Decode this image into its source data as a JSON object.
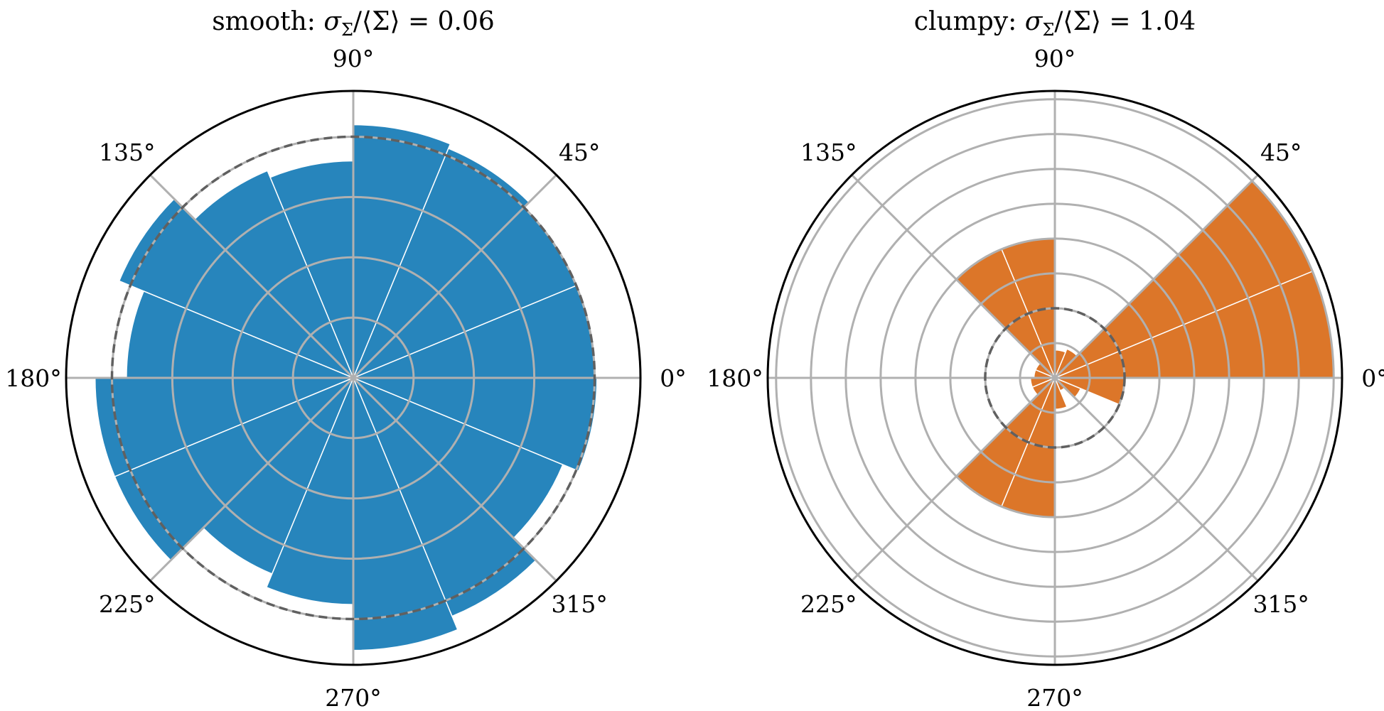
{
  "chart_data": [
    {
      "type": "polar-bar",
      "title": {
        "prefix": "smooth: ",
        "math": "σ",
        "subscript": "Σ",
        "rest": "/⟨Σ⟩ = 0.06"
      },
      "color": "#2785bc",
      "bar_edge_color": "#ffffff",
      "theta_tick_labels": [
        "0°",
        "45°",
        "90°",
        "135°",
        "180°",
        "225°",
        "270°",
        "315°"
      ],
      "theta_tick_degrees": [
        0,
        45,
        90,
        135,
        180,
        225,
        270,
        315
      ],
      "rmax": 1.19,
      "r_gridlines": [
        0.25,
        0.5,
        0.75,
        1.0
      ],
      "mean_radius": 1.0,
      "theta_starts_deg": [
        0,
        22.5,
        45,
        67.5,
        90,
        112.5,
        135,
        157.5,
        180,
        202.5,
        225,
        247.5,
        270,
        292.5,
        315,
        337.5
      ],
      "bar_width_deg": 22.5,
      "values": [
        1.0,
        1.0,
        1.03,
        1.05,
        0.9,
        0.93,
        1.05,
        0.94,
        1.07,
        1.07,
        0.88,
        0.94,
        1.13,
        1.07,
        0.94,
        1.01
      ]
    },
    {
      "type": "polar-bar",
      "title": {
        "prefix": "clumpy: ",
        "math": "σ",
        "subscript": "Σ",
        "rest": "/⟨Σ⟩ = 1.04"
      },
      "color": "#dc7629",
      "bar_edge_color": "#ffffff",
      "theta_tick_labels": [
        "0°",
        "45°",
        "90°",
        "135°",
        "180°",
        "225°",
        "270°",
        "315°"
      ],
      "theta_tick_degrees": [
        0,
        45,
        90,
        135,
        180,
        225,
        270,
        315
      ],
      "rmax": 4.12,
      "r_gridlines": [
        0.5,
        1.0,
        1.5,
        2.0,
        2.5,
        3.0,
        3.5,
        4.0
      ],
      "mean_radius": 1.0,
      "theta_starts_deg": [
        0,
        22.5,
        45,
        67.5,
        90,
        112.5,
        135,
        157.5,
        180,
        202.5,
        225,
        247.5,
        270,
        292.5,
        315,
        337.5
      ],
      "bar_width_deg": 22.5,
      "values": [
        4.0,
        4.0,
        0.45,
        0.4,
        2.0,
        2.0,
        0.3,
        0.3,
        0.35,
        0.35,
        2.0,
        2.0,
        0.45,
        0.2,
        0.4,
        1.0
      ]
    }
  ]
}
